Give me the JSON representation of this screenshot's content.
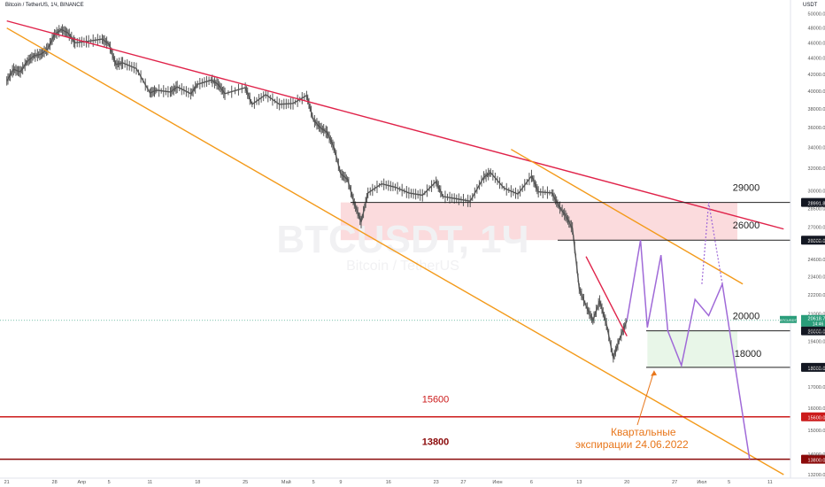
{
  "header": {
    "symbol_line": "Bitcoin / TetherUS, 1Ч, BINANCE",
    "unit": "USDT"
  },
  "watermark": {
    "ticker": "BTCUSDT, 1Ч",
    "name": "Bitcoin / TetherUS"
  },
  "colors": {
    "red_line": "#e0234a",
    "orange_line": "#f39a1a",
    "purple_line": "#a06ad8",
    "candle": "#555555",
    "level_line": "#222222",
    "support_red": "#cc1b1b",
    "support_dark": "#8b0a0a",
    "zone_red": "#fbd7d9",
    "zone_green": "#e6f5e6",
    "label_badge": "#131722",
    "price_badge": "#2a9d7a",
    "annotation": "#e8761a"
  },
  "chart_data": {
    "type": "line",
    "title": "Bitcoin / TetherUS, 1Ч, BINANCE",
    "ylabel": "USDT",
    "ylim": [
      13200,
      51000
    ],
    "xlim": [
      "2022-03-21",
      "2022-07-13"
    ],
    "y_scale": "log",
    "grid": false,
    "y_ticks": [
      13200,
      14000,
      15000,
      16000,
      17000,
      18000,
      19400,
      20000,
      21000,
      22200,
      23400,
      24600,
      26000,
      27000,
      28500,
      30000,
      32000,
      34000,
      36000,
      38000,
      40000,
      42000,
      44000,
      46000,
      48000,
      50000
    ],
    "y_tick_labels": [
      "13200.00",
      "14000.00",
      "15000.00",
      "16000.00",
      "17000.00",
      "18000.00",
      "19400.00",
      "20000.00",
      "21000.00",
      "22200.00",
      "23400.00",
      "24600.00",
      "26000.00",
      "27000.00",
      "28500.00",
      "30000.00",
      "32000.00",
      "34000.00",
      "36000.00",
      "38000.00",
      "40000.00",
      "42000.00",
      "44000.00",
      "46000.00",
      "48000.00",
      "50000.00"
    ],
    "x_ticks": [
      {
        "label": "21",
        "date": "2022-03-21"
      },
      {
        "label": "28",
        "date": "2022-03-28"
      },
      {
        "label": "Апр",
        "date": "2022-04-01"
      },
      {
        "label": "5",
        "date": "2022-04-05"
      },
      {
        "label": "11",
        "date": "2022-04-11"
      },
      {
        "label": "18",
        "date": "2022-04-18"
      },
      {
        "label": "25",
        "date": "2022-04-25"
      },
      {
        "label": "Май",
        "date": "2022-05-01"
      },
      {
        "label": "5",
        "date": "2022-05-05"
      },
      {
        "label": "9",
        "date": "2022-05-09"
      },
      {
        "label": "16",
        "date": "2022-05-16"
      },
      {
        "label": "23",
        "date": "2022-05-23"
      },
      {
        "label": "27",
        "date": "2022-05-27"
      },
      {
        "label": "Июн",
        "date": "2022-06-01"
      },
      {
        "label": "6",
        "date": "2022-06-06"
      },
      {
        "label": "13",
        "date": "2022-06-13"
      },
      {
        "label": "20",
        "date": "2022-06-20"
      },
      {
        "label": "27",
        "date": "2022-06-27"
      },
      {
        "label": "Июл",
        "date": "2022-07-01"
      },
      {
        "label": "5",
        "date": "2022-07-05"
      },
      {
        "label": "11",
        "date": "2022-07-11"
      }
    ],
    "series": [
      {
        "values": [
          [
            "2022-03-21",
            41200
          ],
          [
            "2022-03-22",
            42600
          ],
          [
            "2022-03-23",
            42300
          ],
          [
            "2022-03-24",
            43600
          ],
          [
            "2022-03-25",
            44300
          ],
          [
            "2022-03-26",
            44500
          ],
          [
            "2022-03-27",
            45200
          ],
          [
            "2022-03-28",
            47100
          ],
          [
            "2022-03-29",
            47800
          ],
          [
            "2022-03-30",
            47300
          ],
          [
            "2022-03-31",
            46000
          ],
          [
            "2022-04-02",
            46200
          ],
          [
            "2022-04-04",
            46500
          ],
          [
            "2022-04-05",
            45800
          ],
          [
            "2022-04-06",
            43200
          ],
          [
            "2022-04-07",
            43400
          ],
          [
            "2022-04-09",
            42700
          ],
          [
            "2022-04-11",
            39800
          ],
          [
            "2022-04-12",
            40100
          ],
          [
            "2022-04-14",
            39900
          ],
          [
            "2022-04-15",
            40500
          ],
          [
            "2022-04-17",
            39700
          ],
          [
            "2022-04-18",
            40800
          ],
          [
            "2022-04-20",
            41300
          ],
          [
            "2022-04-21",
            40800
          ],
          [
            "2022-04-22",
            39700
          ],
          [
            "2022-04-25",
            40400
          ],
          [
            "2022-04-26",
            38500
          ],
          [
            "2022-04-28",
            39600
          ],
          [
            "2022-04-30",
            38500
          ],
          [
            "2022-05-02",
            38600
          ],
          [
            "2022-05-04",
            39500
          ],
          [
            "2022-05-05",
            36800
          ],
          [
            "2022-05-06",
            36000
          ],
          [
            "2022-05-07",
            35500
          ],
          [
            "2022-05-08",
            34000
          ],
          [
            "2022-05-09",
            31500
          ],
          [
            "2022-05-10",
            31000
          ],
          [
            "2022-05-11",
            28900
          ],
          [
            "2022-05-12",
            27400
          ],
          [
            "2022-05-13",
            29800
          ],
          [
            "2022-05-15",
            30600
          ],
          [
            "2022-05-17",
            30300
          ],
          [
            "2022-05-19",
            29800
          ],
          [
            "2022-05-21",
            29600
          ],
          [
            "2022-05-23",
            30800
          ],
          [
            "2022-05-24",
            29500
          ],
          [
            "2022-05-26",
            29300
          ],
          [
            "2022-05-28",
            29100
          ],
          [
            "2022-05-30",
            31200
          ],
          [
            "2022-05-31",
            31600
          ],
          [
            "2022-06-02",
            30200
          ],
          [
            "2022-06-04",
            29700
          ],
          [
            "2022-06-06",
            31300
          ],
          [
            "2022-06-07",
            29900
          ],
          [
            "2022-06-09",
            29800
          ],
          [
            "2022-06-10",
            28700
          ],
          [
            "2022-06-11",
            27900
          ],
          [
            "2022-06-12",
            26900
          ],
          [
            "2022-06-13",
            22600
          ],
          [
            "2022-06-14",
            21500
          ],
          [
            "2022-06-15",
            20600
          ],
          [
            "2022-06-16",
            21800
          ],
          [
            "2022-06-17",
            20400
          ],
          [
            "2022-06-18",
            18500
          ],
          [
            "2022-06-19",
            19600
          ],
          [
            "2022-06-20",
            20600
          ]
        ]
      }
    ],
    "trendlines": [
      {
        "name": "red",
        "points": [
          [
            "2022-03-21",
            49000
          ],
          [
            "2022-07-13",
            26850
          ]
        ]
      },
      {
        "name": "orange-lower",
        "points": [
          [
            "2022-03-21",
            48000
          ],
          [
            "2022-07-13",
            13200
          ]
        ]
      },
      {
        "name": "orange-upper",
        "points": [
          [
            "2022-06-03",
            33800
          ],
          [
            "2022-07-07",
            22900
          ]
        ]
      },
      {
        "name": "red-short",
        "points": [
          [
            "2022-06-14",
            24800
          ],
          [
            "2022-06-20",
            19700
          ]
        ]
      }
    ],
    "forecast_path": [
      [
        "2022-06-20",
        20600
      ],
      [
        "2022-06-22",
        26000
      ],
      [
        "2022-06-23",
        20200
      ],
      [
        "2022-06-25",
        24900
      ],
      [
        "2022-06-26",
        20000
      ],
      [
        "2022-06-28",
        18100
      ],
      [
        "2022-06-30",
        21900
      ],
      [
        "2022-07-02",
        20900
      ],
      [
        "2022-07-04",
        22900
      ],
      [
        "2022-07-08",
        13800
      ]
    ],
    "forecast_dotted": [
      [
        "2022-07-01",
        22900
      ],
      [
        "2022-07-02",
        28990
      ],
      [
        "2022-07-04",
        22900
      ]
    ],
    "zones": [
      {
        "name": "resistance-zone",
        "from_date": "2022-05-09",
        "to_date": "2022-07-13",
        "low": 26000,
        "high": 28991.86
      },
      {
        "name": "support-zone",
        "from_date": "2022-06-23",
        "to_date": "2022-07-13",
        "low": 18000,
        "high": 20000
      }
    ],
    "levels": [
      {
        "value": 28991.86,
        "label": "29000",
        "badge": "28991.86",
        "kind": "black"
      },
      {
        "value": 26000,
        "label": "26000",
        "badge": "26000.00",
        "kind": "black"
      },
      {
        "value": 20000,
        "label": "20000",
        "badge": "20000.00",
        "kind": "black"
      },
      {
        "value": 18000,
        "label": "18000",
        "badge": "18000.00",
        "kind": "black"
      },
      {
        "value": 15600,
        "label": "15600",
        "badge": "15600.00",
        "kind": "red"
      },
      {
        "value": 13800,
        "label": "13800",
        "badge": "13800.00",
        "kind": "darkred"
      }
    ],
    "current_price": {
      "value": 20618.71,
      "label": "BTCUSDT",
      "price": "20618.71",
      "timer": "14:46"
    },
    "annotation": {
      "lines": [
        "Квартальные",
        "экспирации 24.06.2022"
      ],
      "target": [
        "2022-06-24",
        18100
      ]
    }
  }
}
